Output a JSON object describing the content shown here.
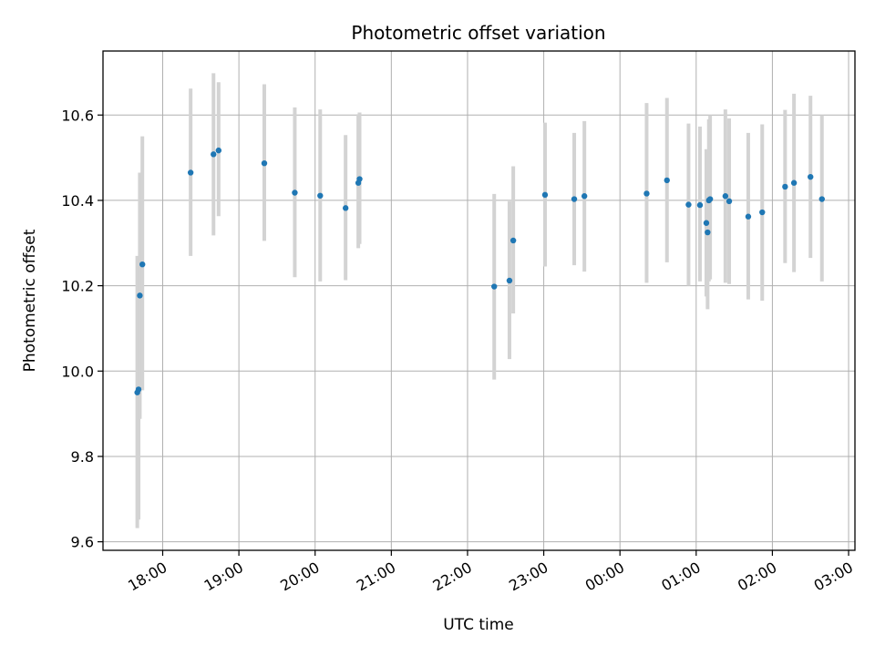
{
  "chart_data": {
    "type": "scatter",
    "title": "Photometric offset variation",
    "xlabel": "UTC time",
    "ylabel": "Photometric offset",
    "grid": true,
    "xlim": [
      "17:13",
      "03:05"
    ],
    "ylim": [
      9.58,
      10.75
    ],
    "x_ticks": [
      "18:00",
      "19:00",
      "20:00",
      "21:00",
      "22:00",
      "23:00",
      "00:00",
      "01:00",
      "02:00",
      "03:00"
    ],
    "y_ticks": [
      "9.6",
      "9.8",
      "10.0",
      "10.2",
      "10.4",
      "10.6"
    ],
    "marker_color": "#1f77b4",
    "errorbar_color": "#d3d3d3",
    "points": [
      {
        "t": "17:40",
        "y": 9.95,
        "lo": 9.632,
        "hi": 10.27
      },
      {
        "t": "17:41",
        "y": 9.957,
        "lo": 9.652,
        "hi": 10.268
      },
      {
        "t": "17:42",
        "y": 10.177,
        "lo": 9.888,
        "hi": 10.465
      },
      {
        "t": "17:44",
        "y": 10.25,
        "lo": 9.955,
        "hi": 10.55
      },
      {
        "t": "18:22",
        "y": 10.465,
        "lo": 10.27,
        "hi": 10.662
      },
      {
        "t": "18:40",
        "y": 10.508,
        "lo": 10.318,
        "hi": 10.698
      },
      {
        "t": "18:44",
        "y": 10.517,
        "lo": 10.363,
        "hi": 10.677
      },
      {
        "t": "19:20",
        "y": 10.487,
        "lo": 10.305,
        "hi": 10.672
      },
      {
        "t": "19:44",
        "y": 10.418,
        "lo": 10.22,
        "hi": 10.618
      },
      {
        "t": "20:04",
        "y": 10.411,
        "lo": 10.21,
        "hi": 10.613
      },
      {
        "t": "20:24",
        "y": 10.382,
        "lo": 10.213,
        "hi": 10.553
      },
      {
        "t": "20:34",
        "y": 10.441,
        "lo": 10.288,
        "hi": 10.602
      },
      {
        "t": "20:35",
        "y": 10.45,
        "lo": 10.298,
        "hi": 10.606
      },
      {
        "t": "22:21",
        "y": 10.198,
        "lo": 9.98,
        "hi": 10.415
      },
      {
        "t": "22:33",
        "y": 10.212,
        "lo": 10.028,
        "hi": 10.398
      },
      {
        "t": "22:36",
        "y": 10.306,
        "lo": 10.135,
        "hi": 10.48
      },
      {
        "t": "23:01",
        "y": 10.413,
        "lo": 10.245,
        "hi": 10.582
      },
      {
        "t": "23:24",
        "y": 10.403,
        "lo": 10.248,
        "hi": 10.558
      },
      {
        "t": "23:32",
        "y": 10.41,
        "lo": 10.233,
        "hi": 10.586
      },
      {
        "t": "00:21",
        "y": 10.416,
        "lo": 10.207,
        "hi": 10.628
      },
      {
        "t": "00:37",
        "y": 10.447,
        "lo": 10.255,
        "hi": 10.64
      },
      {
        "t": "00:54",
        "y": 10.39,
        "lo": 10.2,
        "hi": 10.58
      },
      {
        "t": "01:03",
        "y": 10.389,
        "lo": 10.21,
        "hi": 10.573
      },
      {
        "t": "01:08",
        "y": 10.347,
        "lo": 10.175,
        "hi": 10.52
      },
      {
        "t": "01:09",
        "y": 10.325,
        "lo": 10.145,
        "hi": 10.51
      },
      {
        "t": "01:10",
        "y": 10.4,
        "lo": 10.21,
        "hi": 10.59
      },
      {
        "t": "01:11",
        "y": 10.403,
        "lo": 10.215,
        "hi": 10.6
      },
      {
        "t": "01:23",
        "y": 10.41,
        "lo": 10.207,
        "hi": 10.613
      },
      {
        "t": "01:26",
        "y": 10.398,
        "lo": 10.204,
        "hi": 10.592
      },
      {
        "t": "01:41",
        "y": 10.362,
        "lo": 10.168,
        "hi": 10.558
      },
      {
        "t": "01:52",
        "y": 10.372,
        "lo": 10.165,
        "hi": 10.578
      },
      {
        "t": "02:10",
        "y": 10.432,
        "lo": 10.253,
        "hi": 10.612
      },
      {
        "t": "02:17",
        "y": 10.441,
        "lo": 10.232,
        "hi": 10.65
      },
      {
        "t": "02:30",
        "y": 10.455,
        "lo": 10.265,
        "hi": 10.645
      },
      {
        "t": "02:39",
        "y": 10.403,
        "lo": 10.21,
        "hi": 10.6
      }
    ]
  }
}
